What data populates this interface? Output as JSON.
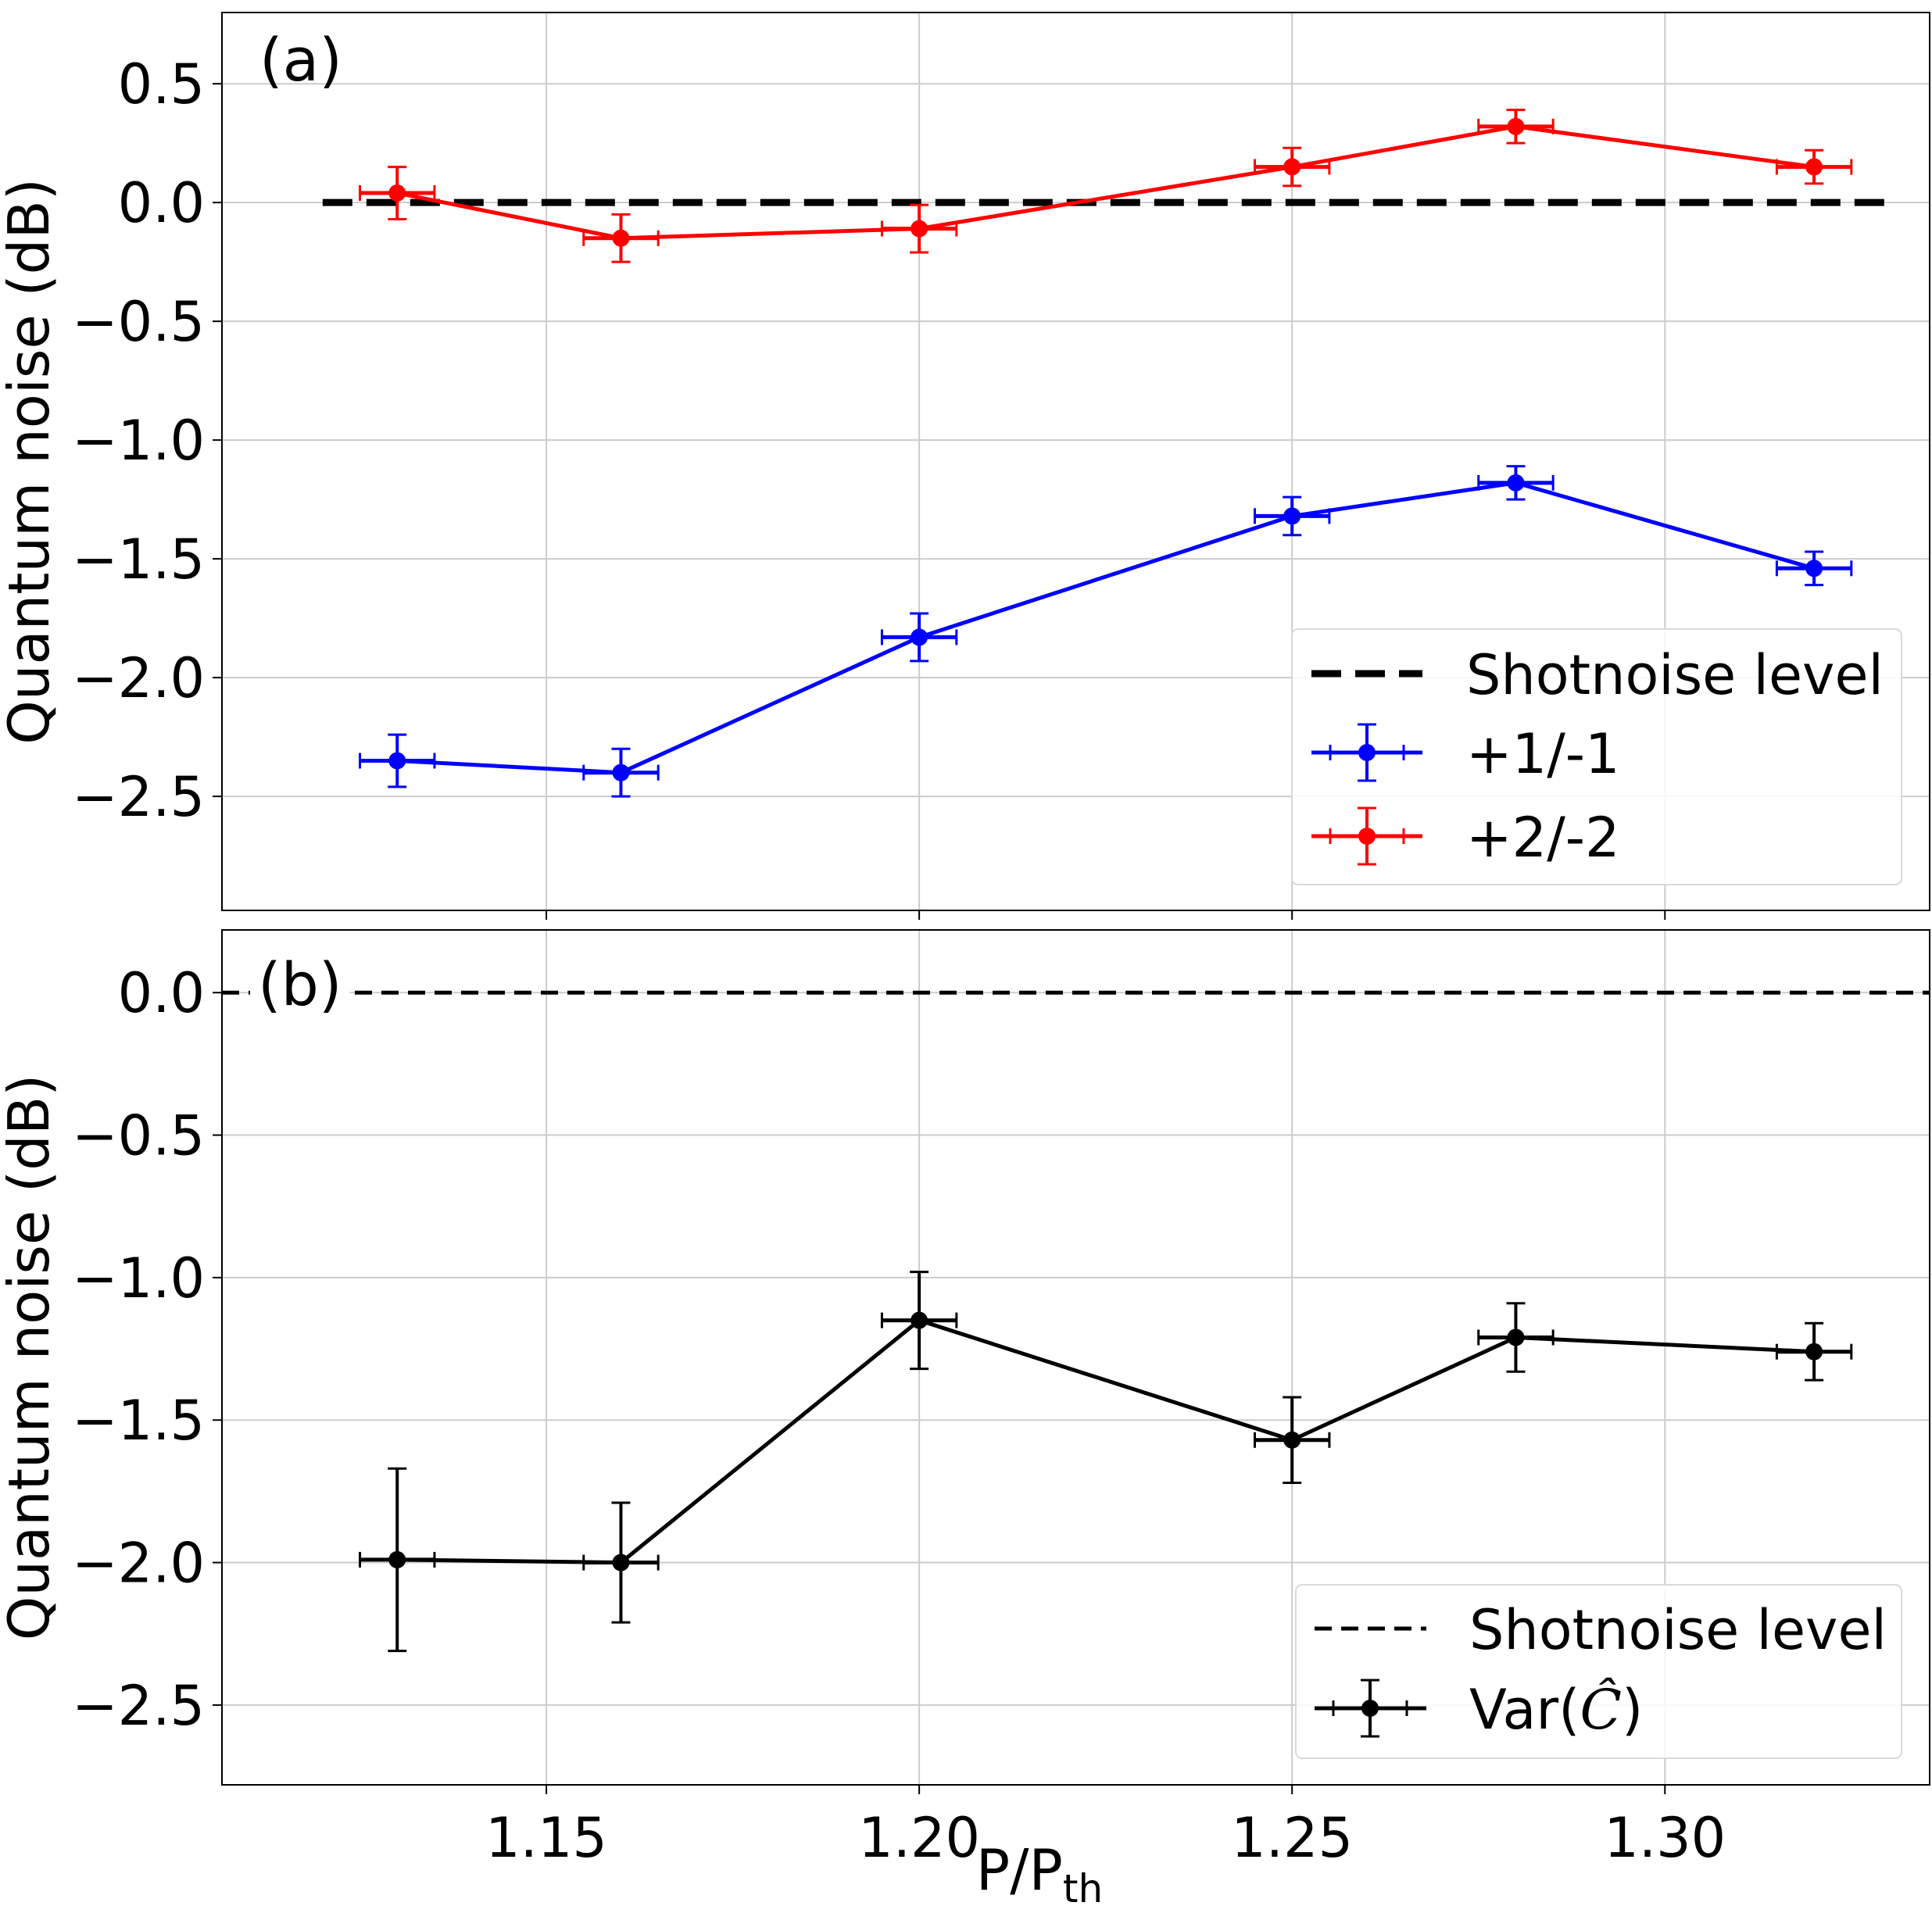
{
  "chart_data": [
    {
      "type": "line",
      "panel_label": "(a)",
      "xlabel": "P/P",
      "xlabel_sub": "th",
      "ylabel": "Quantum noise (dB)",
      "xlim": [
        1.1065,
        1.3355
      ],
      "ylim": [
        -2.98,
        0.8
      ],
      "yticks": [
        0.5,
        0.0,
        -0.5,
        -1.0,
        -1.5,
        -2.0,
        -2.5
      ],
      "ytick_labels": [
        "0.5",
        "0.0",
        "−0.5",
        "−1.0",
        "−1.5",
        "−2.0",
        "−2.5"
      ],
      "xticks": [
        1.15,
        1.2,
        1.25,
        1.3
      ],
      "grid": true,
      "legend_position": "lower-right",
      "reference_line": {
        "name": "Shotnoise level",
        "y": 0.0,
        "x_range": [
          1.12,
          1.33
        ],
        "color": "#000000",
        "style": "dashed"
      },
      "series": [
        {
          "name": "+1/-1",
          "color": "#0000ff",
          "x": [
            1.13,
            1.16,
            1.2,
            1.25,
            1.28,
            1.32
          ],
          "y": [
            -2.35,
            -2.4,
            -1.83,
            -1.32,
            -1.18,
            -1.54
          ],
          "yerr": [
            0.11,
            0.1,
            0.1,
            0.08,
            0.07,
            0.07
          ],
          "xerr": [
            0.005,
            0.005,
            0.005,
            0.005,
            0.005,
            0.005
          ]
        },
        {
          "name": "+2/-2",
          "color": "#ff0000",
          "x": [
            1.13,
            1.16,
            1.2,
            1.25,
            1.28,
            1.32
          ],
          "y": [
            0.04,
            -0.15,
            -0.11,
            0.15,
            0.32,
            0.15
          ],
          "yerr": [
            0.11,
            0.1,
            0.1,
            0.08,
            0.07,
            0.07
          ],
          "xerr": [
            0.005,
            0.005,
            0.005,
            0.005,
            0.005,
            0.005
          ]
        }
      ]
    },
    {
      "type": "line",
      "panel_label": "(b)",
      "xlabel": "P/P",
      "xlabel_sub": "th",
      "ylabel": "Quantum noise (dB)",
      "xlim": [
        1.1065,
        1.3355
      ],
      "ylim": [
        -2.78,
        0.22
      ],
      "yticks": [
        0.0,
        -0.5,
        -1.0,
        -1.5,
        -2.0,
        -2.5
      ],
      "ytick_labels": [
        "0.0",
        "−0.5",
        "−1.0",
        "−1.5",
        "−2.0",
        "−2.5"
      ],
      "xticks": [
        1.15,
        1.2,
        1.25,
        1.3
      ],
      "xtick_labels": [
        "1.15",
        "1.20",
        "1.25",
        "1.30"
      ],
      "grid": true,
      "legend_position": "lower-right",
      "reference_line": {
        "name": "Shotnoise level",
        "y": 0.0,
        "x_range": [
          1.1065,
          1.3355
        ],
        "color": "#000000",
        "style": "dashed"
      },
      "series": [
        {
          "name": "Var(",
          "name_symbol": "Ĉ",
          "name_close": ")",
          "color": "#000000",
          "x": [
            1.13,
            1.16,
            1.2,
            1.25,
            1.28,
            1.32
          ],
          "y": [
            -1.99,
            -2.0,
            -1.15,
            -1.57,
            -1.21,
            -1.26
          ],
          "yerr": [
            0.32,
            0.21,
            0.17,
            0.15,
            0.12,
            0.1
          ],
          "xerr": [
            0.005,
            0.005,
            0.005,
            0.005,
            0.005,
            0.005
          ]
        }
      ]
    }
  ]
}
